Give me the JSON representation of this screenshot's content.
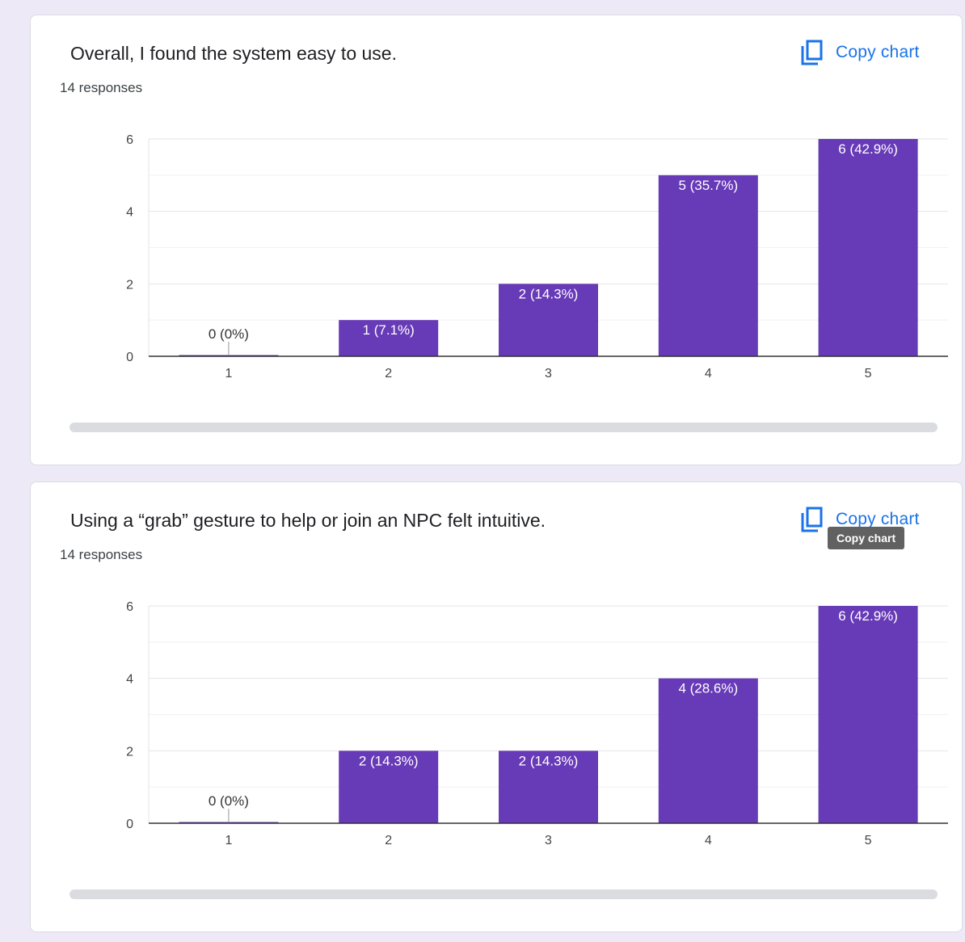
{
  "colors": {
    "bar": "#673ab7",
    "link": "#1a73e8",
    "background": "#ede9f7"
  },
  "icons": {
    "copy": "copy-icon"
  },
  "tooltip": "Copy chart",
  "cards": [
    {
      "title": "Overall, I found the system easy to use.",
      "responses": "14 responses",
      "copy_label": "Copy chart"
    },
    {
      "title": "Using a “grab” gesture to help or join an NPC felt intuitive.",
      "responses": "14 responses",
      "copy_label": "Copy chart"
    }
  ],
  "chart_data": [
    {
      "type": "bar",
      "categories": [
        "1",
        "2",
        "3",
        "4",
        "5"
      ],
      "values": [
        0,
        1,
        2,
        5,
        6
      ],
      "labels": [
        "0 (0%)",
        "1 (7.1%)",
        "2 (14.3%)",
        "5 (35.7%)",
        "6 (42.9%)"
      ],
      "yticks": [
        0,
        2,
        4,
        6
      ],
      "ylim": [
        0,
        6
      ],
      "grid": true
    },
    {
      "type": "bar",
      "categories": [
        "1",
        "2",
        "3",
        "4",
        "5"
      ],
      "values": [
        0,
        2,
        2,
        4,
        6
      ],
      "labels": [
        "0 (0%)",
        "2 (14.3%)",
        "2 (14.3%)",
        "4 (28.6%)",
        "6 (42.9%)"
      ],
      "yticks": [
        0,
        2,
        4,
        6
      ],
      "ylim": [
        0,
        6
      ],
      "grid": true
    }
  ]
}
